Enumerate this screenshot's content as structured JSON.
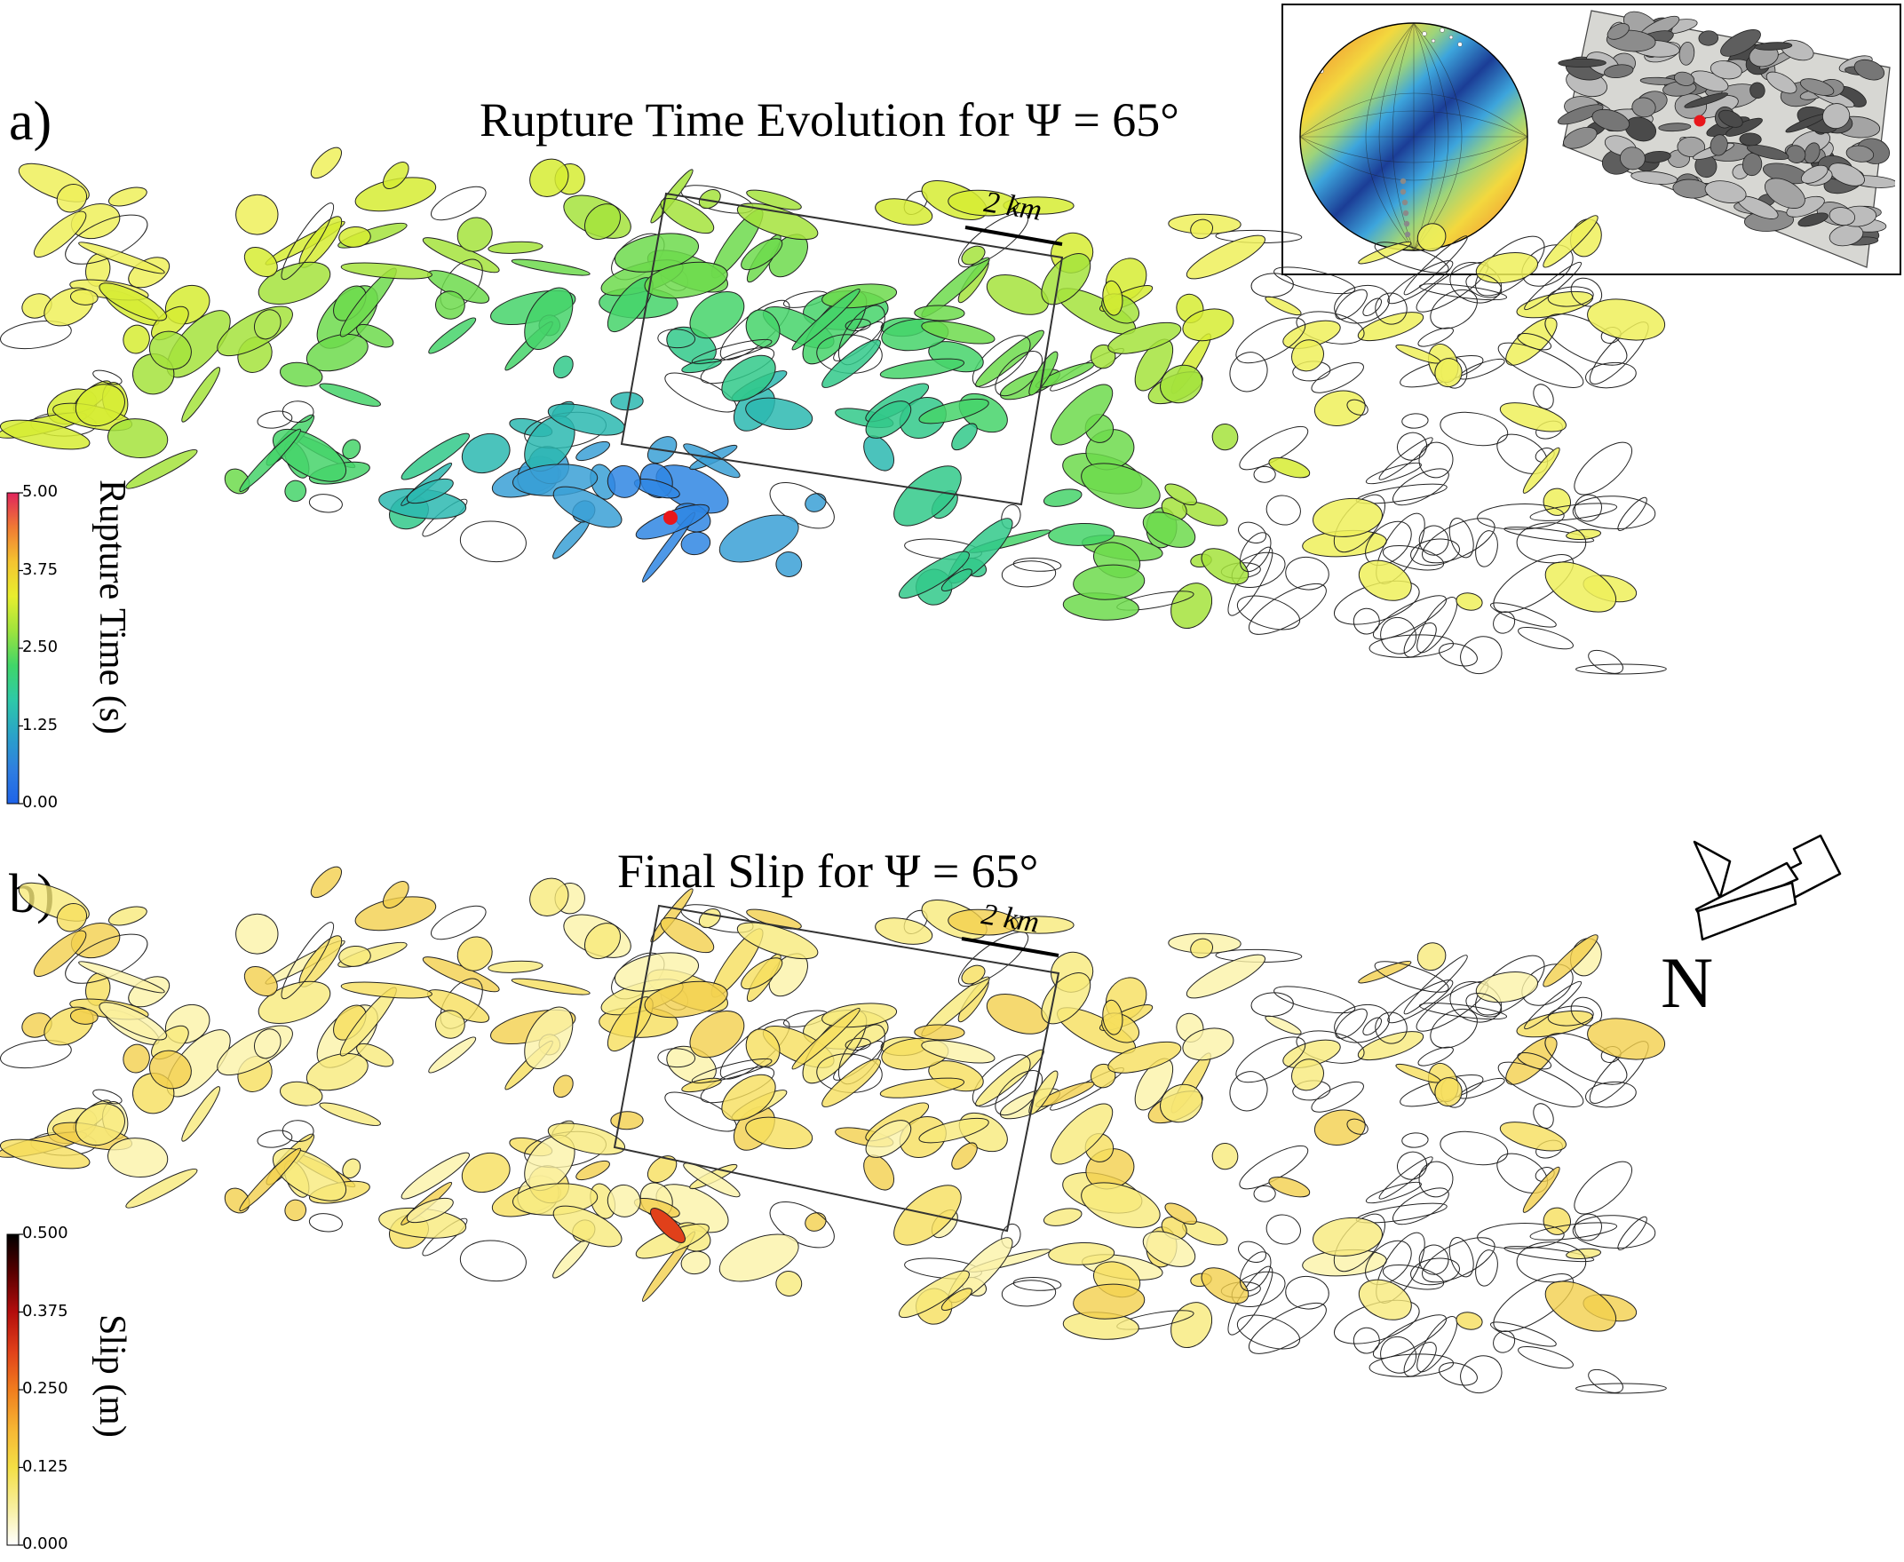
{
  "panel_a": {
    "letter": "a)",
    "title": "Rupture Time Evolution for Ψ = 65°",
    "scale_bar": "2 km",
    "colorbar": {
      "title": "Rupture Time (s)",
      "ticks": [
        "5.00",
        "3.75",
        "2.50",
        "1.25",
        "0.00"
      ],
      "colormap": [
        "#e0245c",
        "#f07a33",
        "#f4c430",
        "#e8ee2e",
        "#9ee33d",
        "#40d669",
        "#2ec9a8",
        "#2aa3c8",
        "#2f7fe0",
        "#1f63e8"
      ]
    }
  },
  "panel_b": {
    "letter": "b)",
    "title": "Final Slip for Ψ = 65°",
    "scale_bar": "2 km",
    "colorbar": {
      "title": "Slip (m)",
      "ticks": [
        "0.500",
        "0.375",
        "0.250",
        "0.125",
        "0.000"
      ],
      "colormap": [
        "#000000",
        "#5a0000",
        "#b30d0d",
        "#e0401a",
        "#f07d1e",
        "#f6b533",
        "#f4df45",
        "#f7ee9b",
        "#ffffff"
      ]
    }
  },
  "north_label": "N",
  "icons": {
    "north_arrow": "north-arrow-icon",
    "hypocenter": "hypocenter-marker-icon",
    "stereonet": "stereonet-icon",
    "fracture_network": "fracture-network-icon"
  },
  "hypocenter_color": "#e8161b"
}
